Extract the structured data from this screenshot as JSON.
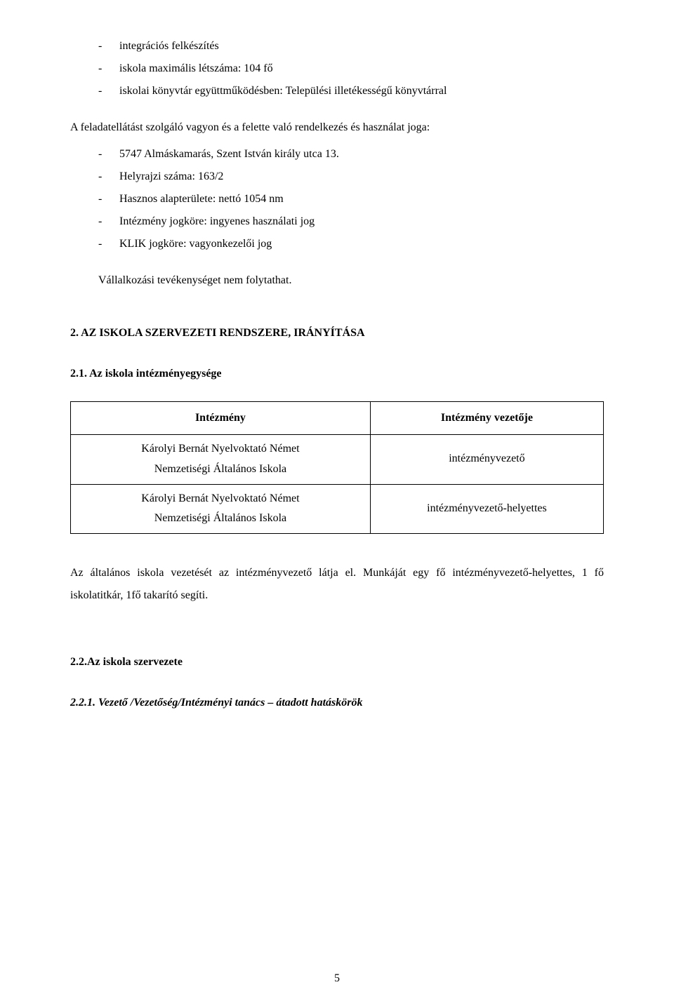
{
  "topList": {
    "items": [
      "integrációs felkészítés",
      "iskola maximális létszáma: 104 fő",
      "iskolai könyvtár együttműködésben: Települési illetékességű könyvtárral"
    ]
  },
  "para1": "A feladatellátást szolgáló vagyon és a felette való rendelkezés és használat joga:",
  "subList": {
    "items": [
      "5747 Almáskamarás, Szent István király utca 13.",
      "Helyrajzi száma: 163/2",
      "Hasznos alapterülete: nettó 1054 nm",
      "Intézmény jogköre: ingyenes használati jog",
      "KLIK jogköre: vagyonkezelői jog"
    ]
  },
  "indentLine": "Vállalkozási tevékenységet nem folytathat.",
  "heading2": "2. AZ ISKOLA SZERVEZETI RENDSZERE, IRÁNYÍTÁSA",
  "heading3": "2.1. Az iskola intézményegysége",
  "table": {
    "headers": [
      "Intézmény",
      "Intézmény vezetője"
    ],
    "rows": [
      {
        "left": "Károlyi Bernát Nyelvoktató Német\nNemzetiségi Általános Iskola",
        "right": "intézményvezető"
      },
      {
        "left": "Károlyi Bernát Nyelvoktató Német\nNemzetiségi Általános Iskola",
        "right": "intézményvezető-helyettes"
      }
    ]
  },
  "para2": "Az általános iskola vezetését az intézményvezető látja el. Munkáját egy fő intézményvezető-helyettes, 1 fő iskolatitkár, 1fő takarító segíti.",
  "heading3b": "2.2.Az iskola szervezete",
  "heading4": "2.2.1.   Vezető /Vezetőség/Intézményi tanács – átadott hatáskörök",
  "pageNumber": "5"
}
